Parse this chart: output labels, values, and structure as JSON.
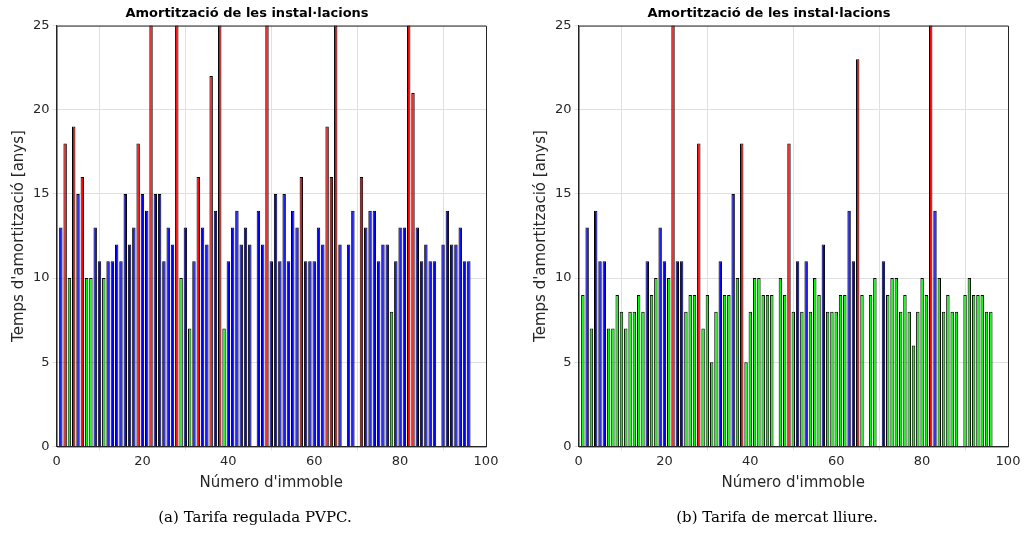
{
  "chart_data": [
    {
      "type": "bar",
      "title": "Amortització de les instal·lacions",
      "xlabel": "Número d'immoble",
      "ylabel": "Temps d'amortització [anys]",
      "x": [
        1,
        2,
        3,
        4,
        5,
        6,
        7,
        8,
        9,
        10,
        11,
        12,
        13,
        14,
        15,
        16,
        17,
        18,
        19,
        20,
        21,
        22,
        23,
        24,
        25,
        26,
        27,
        28,
        29,
        30,
        31,
        32,
        33,
        34,
        35,
        36,
        37,
        38,
        39,
        40,
        41,
        42,
        43,
        44,
        45,
        46,
        47,
        48,
        49,
        50,
        51,
        52,
        53,
        54,
        55,
        56,
        57,
        58,
        59,
        60,
        61,
        62,
        63,
        64,
        65,
        66,
        67,
        68,
        69,
        70,
        71,
        72,
        73,
        74,
        75,
        76,
        77,
        78,
        79,
        80,
        81,
        82,
        83,
        84,
        85,
        86,
        87,
        88,
        89,
        90,
        91,
        92,
        93,
        94,
        95,
        96
      ],
      "values": [
        13,
        18,
        10,
        19,
        15,
        16,
        10,
        10,
        13,
        11,
        10,
        11,
        11,
        12,
        11,
        15,
        12,
        13,
        18,
        15,
        14,
        25,
        15,
        15,
        11,
        13,
        12,
        25,
        10,
        13,
        7,
        11,
        16,
        13,
        12,
        22,
        14,
        25,
        7,
        11,
        13,
        14,
        12,
        13,
        12,
        null,
        14,
        12,
        25,
        11,
        15,
        11,
        15,
        11,
        14,
        13,
        16,
        11,
        11,
        11,
        13,
        12,
        19,
        16,
        25,
        12,
        null,
        12,
        14,
        null,
        16,
        13,
        14,
        14,
        11,
        12,
        12,
        8,
        11,
        13,
        13,
        25,
        21,
        13,
        11,
        12,
        11,
        11,
        null,
        12,
        14,
        12,
        12,
        13,
        11,
        11
      ],
      "colors": [
        "#0000ff",
        "#ff0000",
        "#00ff00",
        "#ff0000",
        "#0000ff",
        "#ff0000",
        "#00ff00",
        "#00ff00",
        "#0000ff",
        "#0000ff",
        "#00ff00",
        "#0000ff",
        "#0000ff",
        "#0000ff",
        "#0000ff",
        "#0000ff",
        "#0000ff",
        "#0000ff",
        "#ff0000",
        "#0000ff",
        "#0000ff",
        "#ff0000",
        "#0000ff",
        "#0000ff",
        "#0000ff",
        "#0000ff",
        "#0000ff",
        "#ff0000",
        "#00ff00",
        "#0000ff",
        "#00ff00",
        "#0000ff",
        "#ff0000",
        "#0000ff",
        "#0000ff",
        "#ff0000",
        "#0000ff",
        "#ff0000",
        "#00ff00",
        "#0000ff",
        "#0000ff",
        "#0000ff",
        "#0000ff",
        "#0000ff",
        "#0000ff",
        "#00ff00",
        "#0000ff",
        "#0000ff",
        "#ff0000",
        "#0000ff",
        "#0000ff",
        "#0000ff",
        "#0000ff",
        "#0000ff",
        "#0000ff",
        "#0000ff",
        "#ff0000",
        "#0000ff",
        "#0000ff",
        "#0000ff",
        "#0000ff",
        "#0000ff",
        "#ff0000",
        "#ff0000",
        "#ff0000",
        "#0000ff",
        "#00ff00",
        "#0000ff",
        "#0000ff",
        "#00ff00",
        "#ff0000",
        "#0000ff",
        "#0000ff",
        "#0000ff",
        "#0000ff",
        "#0000ff",
        "#0000ff",
        "#00ff00",
        "#0000ff",
        "#0000ff",
        "#0000ff",
        "#ff0000",
        "#ff0000",
        "#0000ff",
        "#0000ff",
        "#0000ff",
        "#0000ff",
        "#0000ff",
        "#00ff00",
        "#0000ff",
        "#0000ff",
        "#0000ff",
        "#0000ff",
        "#0000ff",
        "#0000ff",
        "#0000ff"
      ],
      "xlim": [
        0,
        100
      ],
      "xticks": [
        0,
        20,
        40,
        60,
        80,
        100
      ],
      "ylim": [
        0,
        25
      ],
      "yticks": [
        0,
        5,
        10,
        15,
        20,
        25
      ],
      "grid": true,
      "annotations": [
        "(a) Tarifa regulada PVPC."
      ]
    },
    {
      "type": "bar",
      "title": "Amortització de les instal·lacions",
      "xlabel": "Número d'immoble",
      "ylabel": "Temps d'amortització [anys]",
      "x": [
        1,
        2,
        3,
        4,
        5,
        6,
        7,
        8,
        9,
        10,
        11,
        12,
        13,
        14,
        15,
        16,
        17,
        18,
        19,
        20,
        21,
        22,
        23,
        24,
        25,
        26,
        27,
        28,
        29,
        30,
        31,
        32,
        33,
        34,
        35,
        36,
        37,
        38,
        39,
        40,
        41,
        42,
        43,
        44,
        45,
        46,
        47,
        48,
        49,
        50,
        51,
        52,
        53,
        54,
        55,
        56,
        57,
        58,
        59,
        60,
        61,
        62,
        63,
        64,
        65,
        66,
        67,
        68,
        69,
        70,
        71,
        72,
        73,
        74,
        75,
        76,
        77,
        78,
        79,
        80,
        81,
        82,
        83,
        84,
        85,
        86,
        87,
        88,
        89,
        90,
        91,
        92,
        93,
        94,
        95,
        96
      ],
      "values": [
        9,
        13,
        7,
        14,
        11,
        11,
        7,
        7,
        9,
        8,
        7,
        8,
        8,
        9,
        8,
        11,
        9,
        10,
        13,
        11,
        10,
        25,
        11,
        11,
        8,
        9,
        9,
        18,
        7,
        9,
        5,
        8,
        11,
        9,
        9,
        15,
        10,
        18,
        5,
        8,
        10,
        10,
        9,
        9,
        9,
        null,
        10,
        9,
        18,
        8,
        11,
        8,
        11,
        8,
        10,
        9,
        12,
        8,
        8,
        8,
        9,
        9,
        14,
        11,
        23,
        9,
        null,
        9,
        10,
        null,
        11,
        9,
        10,
        10,
        8,
        9,
        8,
        6,
        8,
        10,
        9,
        25,
        14,
        10,
        8,
        9,
        8,
        8,
        null,
        9,
        10,
        9,
        9,
        9,
        8,
        8
      ],
      "colors": [
        "#00ff00",
        "#0000ff",
        "#00ff00",
        "#0000ff",
        "#0000ff",
        "#0000ff",
        "#00ff00",
        "#00ff00",
        "#00ff00",
        "#00ff00",
        "#00ff00",
        "#00ff00",
        "#00ff00",
        "#00ff00",
        "#00ff00",
        "#0000ff",
        "#00ff00",
        "#00ff00",
        "#0000ff",
        "#0000ff",
        "#00ff00",
        "#ff0000",
        "#0000ff",
        "#0000ff",
        "#00ff00",
        "#00ff00",
        "#00ff00",
        "#ff0000",
        "#00ff00",
        "#00ff00",
        "#00ff00",
        "#00ff00",
        "#0000ff",
        "#00ff00",
        "#00ff00",
        "#0000ff",
        "#00ff00",
        "#ff0000",
        "#00ff00",
        "#00ff00",
        "#00ff00",
        "#00ff00",
        "#00ff00",
        "#00ff00",
        "#00ff00",
        "#00ff00",
        "#00ff00",
        "#00ff00",
        "#ff0000",
        "#00ff00",
        "#0000ff",
        "#00ff00",
        "#0000ff",
        "#00ff00",
        "#00ff00",
        "#00ff00",
        "#0000ff",
        "#00ff00",
        "#00ff00",
        "#00ff00",
        "#00ff00",
        "#00ff00",
        "#0000ff",
        "#0000ff",
        "#ff0000",
        "#00ff00",
        "#00ff00",
        "#00ff00",
        "#00ff00",
        "#00ff00",
        "#0000ff",
        "#00ff00",
        "#00ff00",
        "#00ff00",
        "#00ff00",
        "#00ff00",
        "#00ff00",
        "#00ff00",
        "#00ff00",
        "#00ff00",
        "#00ff00",
        "#ff0000",
        "#0000ff",
        "#00ff00",
        "#00ff00",
        "#00ff00",
        "#00ff00",
        "#00ff00",
        "#00ff00",
        "#00ff00",
        "#00ff00",
        "#00ff00",
        "#00ff00",
        "#00ff00",
        "#00ff00",
        "#00ff00"
      ],
      "xlim": [
        0,
        100
      ],
      "xticks": [
        0,
        20,
        40,
        60,
        80,
        100
      ],
      "ylim": [
        0,
        25
      ],
      "yticks": [
        0,
        5,
        10,
        15,
        20,
        25
      ],
      "grid": true,
      "annotations": [
        "(b) Tarifa de mercat lliure."
      ]
    }
  ]
}
